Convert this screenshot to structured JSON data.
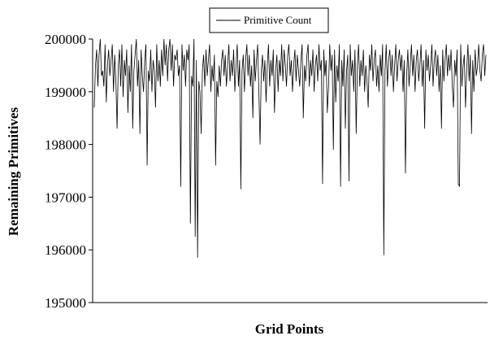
{
  "chart_data": {
    "type": "line",
    "xlabel": "Grid Points",
    "ylabel": "Remaining Primitives",
    "ylim": [
      195000,
      200000
    ],
    "yticks": [
      195000,
      196000,
      197000,
      198000,
      199000,
      200000
    ],
    "grid": false,
    "legend": "top-center",
    "series": [
      {
        "name": "Primitive Count",
        "color": "#000000",
        "values": [
          198700,
          199500,
          199800,
          199100,
          199700,
          200000,
          199300,
          199400,
          199100,
          199900,
          198800,
          199500,
          199800,
          199300,
          199600,
          199900,
          199000,
          199700,
          199200,
          198300,
          199500,
          199800,
          199100,
          199900,
          198900,
          199600,
          199300,
          199800,
          198600,
          199500,
          199000,
          199900,
          198300,
          199400,
          199700,
          200000,
          199100,
          199600,
          198200,
          199800,
          199300,
          199000,
          199600,
          199900,
          197600,
          199400,
          199200,
          199800,
          199000,
          199600,
          199400,
          198700,
          199900,
          199200,
          199600,
          199100,
          199800,
          199300,
          200000,
          199500,
          199900,
          199200,
          199800,
          200000,
          199400,
          199900,
          199100,
          199700,
          199600,
          199800,
          199300,
          199500,
          197200,
          199900,
          199400,
          199700,
          199100,
          199800,
          199600,
          199900,
          196500,
          199300,
          199100,
          200000,
          196250,
          199600,
          195850,
          199200,
          199000,
          198200,
          199400,
          199700,
          199100,
          199800,
          199300,
          199600,
          199900,
          199000,
          199500,
          199200,
          199700,
          197600,
          199200,
          198900,
          199500,
          199100,
          199600,
          199800,
          199300,
          199700,
          199100,
          199500,
          199900,
          199200,
          199600,
          199300,
          199800,
          199000,
          199500,
          199900,
          199100,
          199600,
          197150,
          199400,
          199700,
          199000,
          199600,
          199900,
          199300,
          199700,
          199100,
          199500,
          198500,
          199800,
          199200,
          199600,
          199900,
          199000,
          198000,
          199400,
          199700,
          199200,
          199600,
          198800,
          199500,
          199900,
          199100,
          199600,
          199300,
          199800,
          198600,
          199400,
          199700,
          199000,
          199600,
          199300,
          199900,
          199200,
          199800,
          199500,
          199100,
          199700,
          199900,
          199300,
          199600,
          199000,
          199500,
          199800,
          199200,
          199700,
          199400,
          199100,
          199600,
          199900,
          198500,
          199500,
          199200,
          199700,
          199900,
          199100,
          199600,
          199300,
          199800,
          199000,
          199500,
          199700,
          199200,
          199900,
          199400,
          199600,
          197250,
          199800,
          199300,
          199600,
          198600,
          199100,
          199900,
          199400,
          199700,
          197900,
          199800,
          198800,
          199500,
          199200,
          199900,
          197200,
          199600,
          199100,
          199800,
          198300,
          199400,
          199700,
          197300,
          199900,
          199300,
          199600,
          199000,
          199800,
          198200,
          199500,
          199900,
          199100,
          199600,
          199300,
          199800,
          199000,
          199500,
          199200,
          198700,
          199700,
          199400,
          199900,
          199200,
          199600,
          199800,
          199100,
          199500,
          199000,
          199700,
          199300,
          199900,
          195900,
          199400,
          199900,
          199100,
          199600,
          199800,
          199300,
          199700,
          199000,
          199500,
          199900,
          199200,
          199600,
          199800,
          199400,
          199700,
          199000,
          199600,
          197450,
          199300,
          199800,
          199100,
          199500,
          199900,
          199300,
          199700,
          199000,
          199600,
          199800,
          199200,
          199500,
          199900,
          199100,
          199600,
          198300,
          199800,
          199400,
          199700,
          199200,
          199500,
          199900,
          199100,
          199600,
          199800,
          199300,
          199700,
          199000,
          199500,
          198300,
          199800,
          199200,
          199600,
          199900,
          199300,
          199700,
          199400,
          199800,
          199100,
          198700,
          199600,
          199300,
          199800,
          197250,
          197200,
          199900,
          199100,
          199500,
          199700,
          198700,
          199400,
          199900,
          199200,
          199700,
          198200,
          199600,
          199000,
          199800,
          199300,
          199500,
          199900,
          199400,
          199200,
          199700,
          199900,
          199300,
          199700
        ]
      }
    ]
  }
}
